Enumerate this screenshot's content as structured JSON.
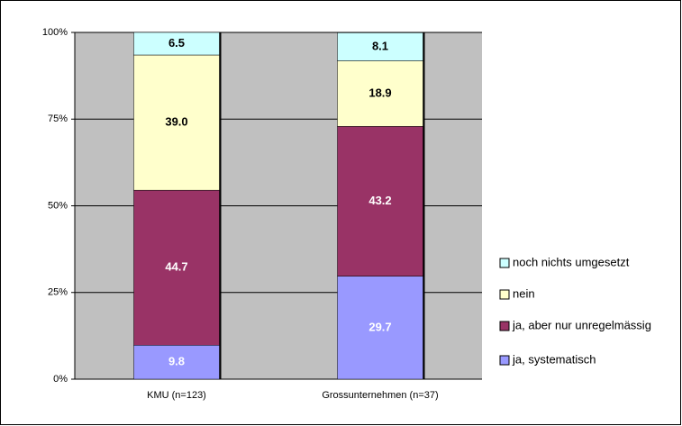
{
  "chart_data": {
    "type": "stacked_bar",
    "categories": [
      "KMU (n=123)",
      "Grossunternehmen (n=37)"
    ],
    "series": [
      {
        "name": "ja, systematisch",
        "color": "#9999ff",
        "values": [
          9.8,
          29.7
        ],
        "value_labels": [
          "9.8",
          "29.7"
        ]
      },
      {
        "name": "ja, aber nur unregelmässig",
        "color": "#993366",
        "values": [
          44.7,
          43.2
        ],
        "value_labels": [
          "44.7",
          "43.2"
        ]
      },
      {
        "name": "nein",
        "color": "#ffffcc",
        "values": [
          39.0,
          18.9
        ],
        "value_labels": [
          "39.0",
          "18.9"
        ]
      },
      {
        "name": "noch nichts umgesetzt",
        "color": "#ccffff",
        "values": [
          6.5,
          8.1
        ],
        "value_labels": [
          "6.5",
          "8.1"
        ]
      }
    ],
    "ylim": [
      0,
      100
    ],
    "yticks": [
      {
        "value": 0,
        "label": "0%"
      },
      {
        "value": 25,
        "label": "25%"
      },
      {
        "value": 50,
        "label": "50%"
      },
      {
        "value": 75,
        "label": "75%"
      },
      {
        "value": 100,
        "label": "100%"
      }
    ],
    "grid": true,
    "legend": "right"
  }
}
